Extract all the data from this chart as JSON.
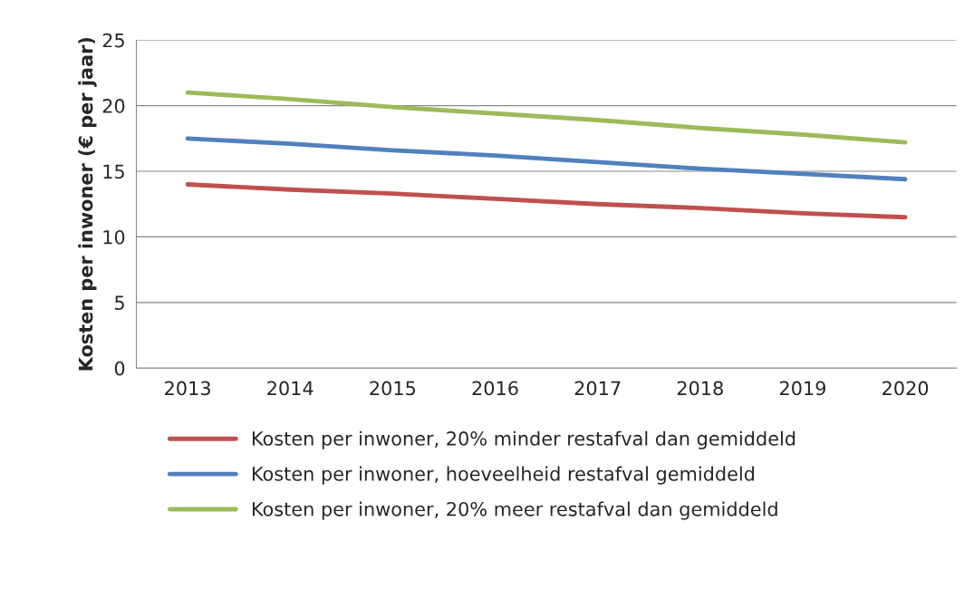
{
  "chart_data": {
    "type": "line",
    "ylabel": "Kosten per inwoner (€ per jaar)",
    "categories": [
      "2013",
      "2014",
      "2015",
      "2016",
      "2017",
      "2018",
      "2019",
      "2020"
    ],
    "series": [
      {
        "name": "Kosten per inwoner, 20% minder restafval dan gemiddeld",
        "color": "#c0504d",
        "values": [
          14.0,
          13.6,
          13.3,
          12.9,
          12.5,
          12.2,
          11.8,
          11.5
        ]
      },
      {
        "name": "Kosten per inwoner, hoeveelheid restafval gemiddeld",
        "color": "#4f81bd",
        "values": [
          17.5,
          17.1,
          16.6,
          16.2,
          15.7,
          15.2,
          14.8,
          14.4
        ]
      },
      {
        "name": "Kosten per inwoner, 20% meer restafval dan gemiddeld",
        "color": "#9bbb59",
        "values": [
          21.0,
          20.5,
          19.9,
          19.4,
          18.9,
          18.3,
          17.8,
          17.2
        ]
      }
    ],
    "ylim": [
      0,
      25
    ],
    "yticks": [
      0,
      5,
      10,
      15,
      20,
      25
    ],
    "grid": "y",
    "legend": "bottom",
    "marker": "none",
    "line_style": "solid"
  }
}
